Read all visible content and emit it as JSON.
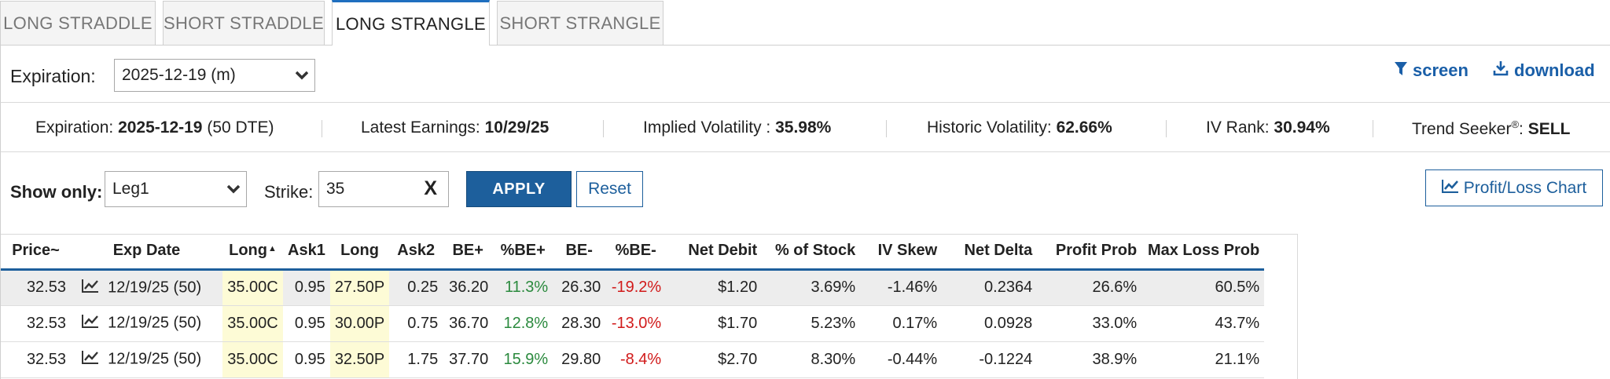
{
  "tabs": [
    {
      "label": "LONG STRADDLE"
    },
    {
      "label": "SHORT STRADDLE"
    },
    {
      "label": "LONG STRANGLE"
    },
    {
      "label": "SHORT STRANGLE"
    }
  ],
  "active_tab": "LONG STRANGLE",
  "expiration": {
    "label": "Expiration:",
    "value": "2025-12-19 (m)"
  },
  "links": {
    "screen": "screen",
    "download": "download"
  },
  "stats": {
    "expiration_label": "Expiration:",
    "expiration_value": "2025-12-19",
    "expiration_dte": "(50 DTE)",
    "earnings_label": "Latest Earnings:",
    "earnings_value": "10/29/25",
    "iv_label": "Implied Volatility :",
    "iv_value": "35.98%",
    "hv_label": "Historic Volatility:",
    "hv_value": "62.66%",
    "ivrank_label": "IV Rank:",
    "ivrank_value": "30.94%",
    "trend_label": "Trend Seeker",
    "trend_reg": "®",
    "trend_colon": ":",
    "trend_value": "SELL"
  },
  "filters": {
    "show_only_label": "Show only:",
    "show_only_value": "Leg1",
    "strike_label": "Strike:",
    "strike_value": "35",
    "clear": "X",
    "apply": "APPLY",
    "reset": "Reset",
    "pl_chart": "Profit/Loss Chart"
  },
  "table": {
    "headers": [
      "Price~",
      "Exp Date",
      "Long",
      "Ask1",
      "Long",
      "Ask2",
      "BE+",
      "%BE+",
      "BE-",
      "%BE-",
      "Net Debit",
      "% of Stock",
      "IV Skew",
      "Net Delta",
      "Profit Prob",
      "Max Loss Prob"
    ],
    "sort_indicator": "▲",
    "rows": [
      {
        "price": "32.53",
        "exp": "12/19/25 (50)",
        "long1": "35.00C",
        "ask1": "0.95",
        "long2": "27.50P",
        "ask2": "0.25",
        "be_plus": "36.20",
        "pbe_plus": "11.3%",
        "be_minus": "26.30",
        "pbe_minus": "-19.2%",
        "net_debit": "$1.20",
        "pct_stock": "3.69%",
        "iv_skew": "-1.46%",
        "net_delta": "0.2364",
        "profit_prob": "26.6%",
        "max_loss_prob": "60.5%"
      },
      {
        "price": "32.53",
        "exp": "12/19/25 (50)",
        "long1": "35.00C",
        "ask1": "0.95",
        "long2": "30.00P",
        "ask2": "0.75",
        "be_plus": "36.70",
        "pbe_plus": "12.8%",
        "be_minus": "28.30",
        "pbe_minus": "-13.0%",
        "net_debit": "$1.70",
        "pct_stock": "5.23%",
        "iv_skew": "0.17%",
        "net_delta": "0.0928",
        "profit_prob": "33.0%",
        "max_loss_prob": "43.7%"
      },
      {
        "price": "32.53",
        "exp": "12/19/25 (50)",
        "long1": "35.00C",
        "ask1": "0.95",
        "long2": "32.50P",
        "ask2": "1.75",
        "be_plus": "37.70",
        "pbe_plus": "15.9%",
        "be_minus": "29.80",
        "pbe_minus": "-8.4%",
        "net_debit": "$2.70",
        "pct_stock": "8.30%",
        "iv_skew": "-0.44%",
        "net_delta": "-0.1224",
        "profit_prob": "38.9%",
        "max_loss_prob": "21.1%"
      }
    ]
  },
  "colors": {
    "accent": "#1d5f9c",
    "positive": "#2b8a3e",
    "negative": "#d11a1a",
    "highlight": "#fdfbd6"
  }
}
